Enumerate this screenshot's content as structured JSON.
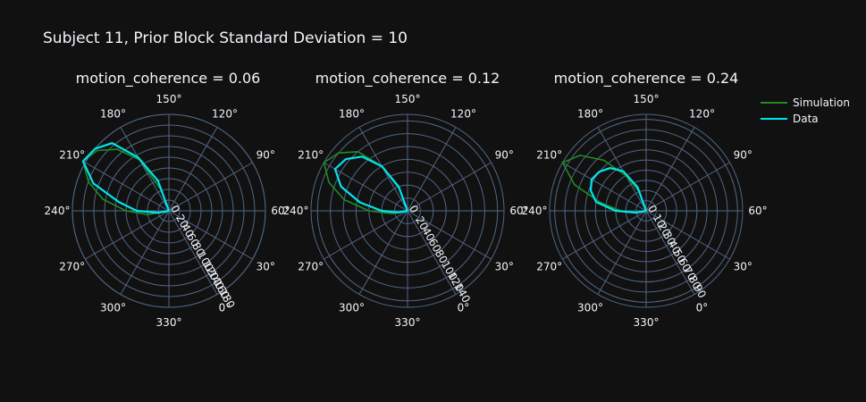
{
  "title": "Subject 11, Prior Block Standard Deviation = 10",
  "colors": {
    "background": "#111111",
    "grid": "#506784",
    "text": "#f2f5fa",
    "simulation": "#228b22",
    "data": "#00e5ee"
  },
  "legend": {
    "placement": "right",
    "items": [
      {
        "label": "Simulation",
        "color": "#228b22"
      },
      {
        "label": "Data",
        "color": "#00e5ee"
      }
    ]
  },
  "chart_data": [
    {
      "type": "polar-line",
      "title": "motion_coherence = 0.06",
      "angular_ticks": [
        "0°",
        "30°",
        "60°",
        "90°",
        "120°",
        "150°",
        "180°",
        "210°",
        "240°",
        "270°",
        "300°",
        "330°"
      ],
      "radial_ticks": [
        "0",
        "20",
        "40",
        "60",
        "80",
        "100",
        "120",
        "140",
        "160",
        "180"
      ],
      "radial_range": [
        0,
        180
      ],
      "angular_rotation_deg": -60,
      "angular_direction": "counterclockwise",
      "series": [
        {
          "name": "Simulation",
          "theta": [
            170,
            180,
            190,
            200,
            210,
            220,
            230,
            240,
            250
          ],
          "r": [
            40,
            110,
            150,
            175,
            185,
            160,
            125,
            80,
            40
          ]
        },
        {
          "name": "Data",
          "theta": [
            170,
            180,
            190,
            200,
            210,
            220,
            230,
            240,
            250
          ],
          "r": [
            60,
            115,
            165,
            180,
            185,
            150,
            95,
            60,
            20
          ]
        }
      ]
    },
    {
      "type": "polar-line",
      "title": "motion_coherence = 0.12",
      "angular_ticks": [
        "0°",
        "30°",
        "60°",
        "90°",
        "120°",
        "150°",
        "180°",
        "210°",
        "240°",
        "270°",
        "300°",
        "330°"
      ],
      "radial_ticks": [
        "0",
        "20",
        "40",
        "60",
        "80",
        "100",
        "120",
        "140"
      ],
      "radial_range": [
        0,
        150
      ],
      "angular_rotation_deg": -60,
      "angular_direction": "counterclockwise",
      "series": [
        {
          "name": "Simulation",
          "theta": [
            170,
            180,
            190,
            200,
            210,
            220,
            230,
            240,
            250
          ],
          "r": [
            35,
            80,
            120,
            140,
            150,
            130,
            100,
            60,
            25
          ]
        },
        {
          "name": "Data",
          "theta": [
            170,
            180,
            190,
            200,
            210,
            220,
            230,
            240,
            250
          ],
          "r": [
            40,
            80,
            110,
            125,
            130,
            110,
            75,
            40,
            15
          ]
        }
      ]
    },
    {
      "type": "polar-line",
      "title": "motion_coherence = 0.24",
      "angular_ticks": [
        "0°",
        "30°",
        "60°",
        "90°",
        "120°",
        "150°",
        "180°",
        "210°",
        "240°",
        "270°",
        "300°",
        "330°"
      ],
      "radial_ticks": [
        "0",
        "10",
        "20",
        "30",
        "40",
        "50",
        "60",
        "70",
        "80",
        "90"
      ],
      "radial_range": [
        0,
        95
      ],
      "angular_rotation_deg": -60,
      "angular_direction": "counterclockwise",
      "series": [
        {
          "name": "Simulation",
          "theta": [
            170,
            180,
            190,
            200,
            210,
            220,
            230,
            240,
            250
          ],
          "r": [
            20,
            40,
            65,
            85,
            95,
            75,
            45,
            25,
            10
          ]
        },
        {
          "name": "Data",
          "theta": [
            170,
            180,
            190,
            200,
            210,
            220,
            230,
            240,
            250
          ],
          "r": [
            25,
            45,
            55,
            60,
            62,
            58,
            50,
            30,
            10
          ]
        }
      ]
    }
  ]
}
